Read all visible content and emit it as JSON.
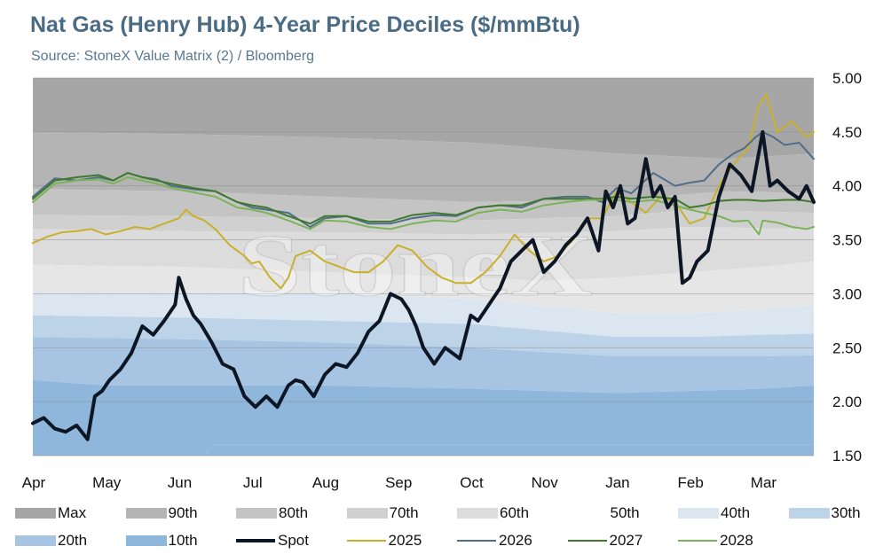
{
  "title": "Nat Gas (Henry Hub) 4-Year Price Deciles ($/mmBtu)",
  "subtitle": "Source: StoneX Value Matrix (2) / Bloomberg",
  "watermark": "StoneX",
  "chart_data": {
    "type": "area",
    "title": "Nat Gas (Henry Hub) 4-Year Price Deciles ($/mmBtu)",
    "ylim": [
      1.5,
      5.0
    ],
    "yticks": [
      "5.00",
      "4.50",
      "4.00",
      "3.50",
      "3.00",
      "2.50",
      "2.00",
      "1.50"
    ],
    "ytick_values": [
      5.0,
      4.5,
      4.0,
      3.5,
      3.0,
      2.5,
      2.0,
      1.5
    ],
    "y_axis_side": "right",
    "grid": true,
    "legend_position": "bottom",
    "months": [
      "Apr",
      "May",
      "Jun",
      "Jul",
      "Aug",
      "Sep",
      "Oct",
      "Nov",
      "Jan",
      "Feb",
      "Mar"
    ],
    "month_positions": [
      0,
      1,
      2,
      3,
      4,
      5,
      6,
      7,
      8,
      9,
      10
    ],
    "x_range": [
      0,
      10.7
    ],
    "deciles": [
      {
        "name": "Max",
        "color": "#a6a6a6",
        "x": [
          0,
          10.7
        ],
        "values": [
          5.0,
          5.0
        ]
      },
      {
        "name": "90th",
        "color": "#b4b4b4",
        "x": [
          0,
          2,
          4,
          6,
          8,
          9.5,
          10.7
        ],
        "values": [
          4.5,
          4.48,
          4.45,
          4.4,
          4.3,
          4.25,
          4.3
        ]
      },
      {
        "name": "80th",
        "color": "#c4c4c4",
        "x": [
          0,
          2,
          4,
          6,
          8,
          9.5,
          10.7
        ],
        "values": [
          3.97,
          3.95,
          3.9,
          3.85,
          3.87,
          3.95,
          3.93
        ]
      },
      {
        "name": "70th",
        "color": "#d0d0d0",
        "x": [
          0,
          2,
          4,
          6,
          8,
          9,
          10.7
        ],
        "values": [
          3.73,
          3.72,
          3.7,
          3.68,
          3.72,
          3.78,
          3.75
        ]
      },
      {
        "name": "60th",
        "color": "#dcdcdc",
        "x": [
          0,
          2,
          4,
          6,
          8,
          9,
          10.7
        ],
        "values": [
          3.6,
          3.58,
          3.57,
          3.55,
          3.58,
          3.62,
          3.6
        ]
      },
      {
        "name": "50th",
        "color": "#e6e6e6",
        "x": [
          0,
          2,
          4,
          6,
          7,
          8,
          9,
          10,
          10.7
        ],
        "values": [
          3.27,
          3.25,
          3.2,
          3.15,
          3.12,
          3.15,
          3.2,
          3.25,
          3.3
        ]
      },
      {
        "name": "40th",
        "color": "#dbe6f1",
        "x": [
          0,
          2,
          4,
          6,
          8,
          9,
          10,
          10.7
        ],
        "values": [
          3.02,
          3.01,
          3.0,
          2.95,
          2.82,
          2.82,
          2.85,
          2.9
        ]
      },
      {
        "name": "30th",
        "color": "#bdd3e7",
        "x": [
          0,
          2,
          4,
          6,
          8,
          9,
          10,
          10.7
        ],
        "values": [
          2.8,
          2.78,
          2.75,
          2.72,
          2.6,
          2.6,
          2.62,
          2.63
        ]
      },
      {
        "name": "20th",
        "color": "#a7c5e2",
        "x": [
          0,
          2,
          4,
          6,
          8,
          9,
          10,
          10.7
        ],
        "values": [
          2.6,
          2.58,
          2.55,
          2.5,
          2.42,
          2.42,
          2.42,
          2.43
        ]
      },
      {
        "name": "10th",
        "color": "#8fb7dc",
        "x": [
          0,
          1,
          2,
          4,
          6,
          8,
          9,
          10,
          10.7
        ],
        "values": [
          2.2,
          2.15,
          2.15,
          2.15,
          2.12,
          2.08,
          2.1,
          2.12,
          2.15
        ]
      },
      {
        "name": "Min",
        "color": "#8fb7dc",
        "x": [
          0,
          2.4,
          2.42,
          10.7
        ],
        "values": [
          1.5,
          1.5,
          1.6,
          1.6
        ]
      }
    ],
    "series": [
      {
        "name": "2025",
        "color": "#c9b02c",
        "width": 2,
        "x": [
          0,
          0.2,
          0.4,
          0.6,
          0.8,
          1.0,
          1.2,
          1.4,
          1.6,
          1.8,
          2.0,
          2.1,
          2.2,
          2.35,
          2.5,
          2.7,
          2.9,
          3.0,
          3.1,
          3.25,
          3.4,
          3.5,
          3.6,
          3.8,
          4.0,
          4.2,
          4.4,
          4.6,
          4.8,
          5.0,
          5.2,
          5.4,
          5.6,
          5.8,
          6.0,
          6.2,
          6.4,
          6.6,
          6.8,
          7.0,
          7.2,
          7.4,
          7.6,
          7.8,
          8.0,
          8.2,
          8.4,
          8.6,
          8.8,
          9.0,
          9.2,
          9.4,
          9.6,
          9.8,
          9.95,
          10.05,
          10.2,
          10.4,
          10.6,
          10.7
        ],
        "values": [
          3.47,
          3.53,
          3.57,
          3.58,
          3.6,
          3.55,
          3.58,
          3.62,
          3.6,
          3.65,
          3.7,
          3.78,
          3.72,
          3.68,
          3.6,
          3.45,
          3.35,
          3.28,
          3.3,
          3.15,
          3.05,
          3.15,
          3.35,
          3.4,
          3.3,
          3.25,
          3.2,
          3.2,
          3.3,
          3.45,
          3.4,
          3.25,
          3.15,
          3.1,
          3.1,
          3.2,
          3.35,
          3.55,
          3.4,
          3.3,
          3.35,
          3.5,
          3.7,
          3.7,
          3.95,
          3.85,
          3.75,
          3.9,
          3.85,
          3.65,
          3.7,
          4.0,
          4.2,
          4.35,
          4.75,
          4.85,
          4.5,
          4.6,
          4.45,
          4.5
        ]
      },
      {
        "name": "2026",
        "color": "#506e87",
        "width": 2,
        "x": [
          0,
          0.3,
          0.6,
          0.9,
          1.1,
          1.3,
          1.5,
          1.7,
          1.9,
          2.2,
          2.5,
          2.8,
          3.0,
          3.2,
          3.5,
          3.8,
          4.0,
          4.3,
          4.6,
          4.9,
          5.2,
          5.5,
          5.8,
          6.1,
          6.4,
          6.7,
          7.0,
          7.3,
          7.6,
          7.8,
          8.0,
          8.2,
          8.5,
          8.8,
          9.0,
          9.2,
          9.4,
          9.6,
          9.75,
          9.9,
          10.0,
          10.15,
          10.3,
          10.5,
          10.7
        ],
        "values": [
          3.9,
          4.07,
          4.05,
          4.08,
          4.05,
          4.12,
          4.08,
          4.06,
          4.0,
          3.97,
          3.95,
          3.85,
          3.8,
          3.78,
          3.75,
          3.62,
          3.7,
          3.72,
          3.65,
          3.65,
          3.7,
          3.73,
          3.72,
          3.8,
          3.82,
          3.8,
          3.88,
          3.9,
          3.9,
          3.85,
          3.98,
          3.93,
          4.12,
          4.0,
          4.03,
          4.05,
          4.2,
          4.3,
          4.35,
          4.45,
          4.5,
          4.45,
          4.38,
          4.4,
          4.25
        ]
      },
      {
        "name": "2027",
        "color": "#3f7a2c",
        "width": 2,
        "x": [
          0,
          0.3,
          0.6,
          0.9,
          1.1,
          1.3,
          1.5,
          1.7,
          1.9,
          2.2,
          2.5,
          2.8,
          3.0,
          3.2,
          3.5,
          3.8,
          4.0,
          4.3,
          4.6,
          4.9,
          5.2,
          5.5,
          5.8,
          6.1,
          6.4,
          6.7,
          7.0,
          7.3,
          7.6,
          7.8,
          8.0,
          8.2,
          8.5,
          8.8,
          9.0,
          9.2,
          9.4,
          9.6,
          9.8,
          10.0,
          10.3,
          10.5,
          10.7
        ],
        "values": [
          3.88,
          4.05,
          4.08,
          4.1,
          4.05,
          4.12,
          4.08,
          4.05,
          4.02,
          3.98,
          3.95,
          3.85,
          3.82,
          3.8,
          3.72,
          3.65,
          3.72,
          3.72,
          3.67,
          3.67,
          3.73,
          3.75,
          3.73,
          3.8,
          3.82,
          3.82,
          3.88,
          3.88,
          3.88,
          3.88,
          3.9,
          3.88,
          3.9,
          3.88,
          3.8,
          3.82,
          3.86,
          3.87,
          3.87,
          3.86,
          3.87,
          3.87,
          3.85
        ]
      },
      {
        "name": "2028",
        "color": "#7cb35a",
        "width": 2,
        "x": [
          0,
          0.3,
          0.6,
          0.9,
          1.1,
          1.3,
          1.5,
          1.7,
          1.9,
          2.2,
          2.5,
          2.8,
          3.0,
          3.2,
          3.5,
          3.8,
          4.0,
          4.3,
          4.6,
          4.9,
          5.2,
          5.5,
          5.8,
          6.1,
          6.4,
          6.7,
          7.0,
          7.3,
          7.6,
          7.8,
          8.0,
          8.2,
          8.5,
          8.8,
          9.0,
          9.2,
          9.4,
          9.6,
          9.8,
          9.95,
          10.0,
          10.2,
          10.4,
          10.6,
          10.7
        ],
        "values": [
          3.85,
          4.02,
          4.05,
          4.06,
          4.02,
          4.08,
          4.05,
          4.02,
          3.98,
          3.94,
          3.9,
          3.8,
          3.78,
          3.75,
          3.68,
          3.6,
          3.68,
          3.67,
          3.62,
          3.6,
          3.65,
          3.68,
          3.67,
          3.75,
          3.78,
          3.76,
          3.82,
          3.85,
          3.87,
          3.87,
          3.87,
          3.85,
          3.87,
          3.82,
          3.78,
          3.75,
          3.72,
          3.67,
          3.68,
          3.55,
          3.68,
          3.66,
          3.62,
          3.6,
          3.62
        ]
      },
      {
        "name": "Spot",
        "color": "#0d1624",
        "width": 4,
        "x": [
          0,
          0.15,
          0.3,
          0.45,
          0.6,
          0.75,
          0.85,
          0.95,
          1.05,
          1.2,
          1.35,
          1.5,
          1.65,
          1.8,
          1.95,
          2.0,
          2.1,
          2.2,
          2.3,
          2.45,
          2.6,
          2.75,
          2.9,
          3.05,
          3.2,
          3.35,
          3.5,
          3.6,
          3.7,
          3.85,
          4.0,
          4.15,
          4.3,
          4.45,
          4.6,
          4.75,
          4.9,
          5.05,
          5.15,
          5.25,
          5.35,
          5.5,
          5.65,
          5.85,
          6.0,
          6.1,
          6.2,
          6.3,
          6.4,
          6.55,
          6.7,
          6.85,
          7.0,
          7.15,
          7.3,
          7.45,
          7.6,
          7.75,
          7.85,
          7.95,
          8.05,
          8.15,
          8.25,
          8.4,
          8.5,
          8.6,
          8.7,
          8.8,
          8.9,
          9.0,
          9.1,
          9.25,
          9.4,
          9.55,
          9.7,
          9.85,
          10.0,
          10.1,
          10.2,
          10.35,
          10.5,
          10.6,
          10.7
        ],
        "values": [
          1.8,
          1.85,
          1.75,
          1.72,
          1.78,
          1.65,
          2.05,
          2.1,
          2.2,
          2.3,
          2.45,
          2.7,
          2.62,
          2.75,
          2.9,
          3.15,
          2.95,
          2.8,
          2.72,
          2.55,
          2.35,
          2.3,
          2.05,
          1.95,
          2.05,
          1.95,
          2.15,
          2.2,
          2.18,
          2.05,
          2.25,
          2.35,
          2.32,
          2.45,
          2.65,
          2.75,
          3.0,
          2.95,
          2.85,
          2.7,
          2.5,
          2.35,
          2.5,
          2.4,
          2.8,
          2.75,
          2.85,
          2.95,
          3.05,
          3.3,
          3.4,
          3.5,
          3.2,
          3.3,
          3.45,
          3.55,
          3.7,
          3.4,
          3.95,
          3.8,
          4.0,
          3.65,
          3.7,
          4.25,
          3.9,
          4.0,
          3.8,
          3.9,
          3.1,
          3.15,
          3.3,
          3.4,
          3.9,
          4.2,
          4.1,
          3.95,
          4.5,
          4.0,
          4.05,
          3.95,
          3.88,
          4.0,
          3.85
        ]
      }
    ]
  },
  "legend": [
    {
      "name": "Max",
      "kind": "box",
      "color": "#a6a6a6"
    },
    {
      "name": "90th",
      "kind": "box",
      "color": "#b4b4b4"
    },
    {
      "name": "80th",
      "kind": "box",
      "color": "#c4c4c4"
    },
    {
      "name": "70th",
      "kind": "box",
      "color": "#d0d0d0"
    },
    {
      "name": "60th",
      "kind": "box",
      "color": "#dcdcdc"
    },
    {
      "name": "50th",
      "kind": "box",
      "color": "#ffffff"
    },
    {
      "name": "40th",
      "kind": "box",
      "color": "#dbe6f1"
    },
    {
      "name": "30th",
      "kind": "box",
      "color": "#bdd3e7"
    },
    {
      "name": "20th",
      "kind": "box",
      "color": "#a7c5e2"
    },
    {
      "name": "10th",
      "kind": "box",
      "color": "#8fb7dc"
    },
    {
      "name": "Spot",
      "kind": "line",
      "color": "#0d1624"
    },
    {
      "name": "2025",
      "kind": "line",
      "color": "#c9b02c"
    },
    {
      "name": "2026",
      "kind": "line",
      "color": "#506e87"
    },
    {
      "name": "2027",
      "kind": "line",
      "color": "#3f7a2c"
    },
    {
      "name": "2028",
      "kind": "line",
      "color": "#7cb35a"
    }
  ]
}
